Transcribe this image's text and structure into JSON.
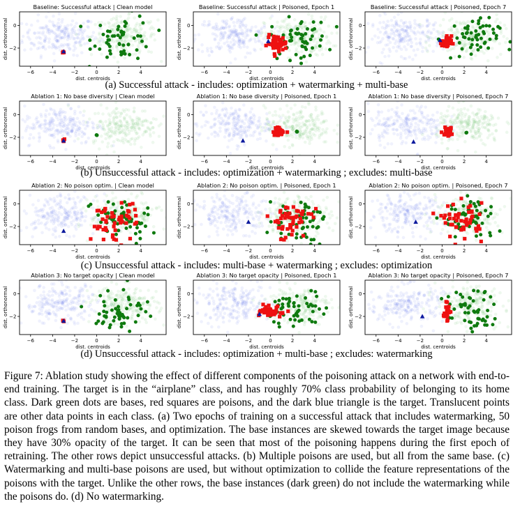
{
  "figure": {
    "rows": [
      {
        "caption": "(a) Successful attack - includes: optimization + watermarking + multi-base",
        "panels": [
          {
            "title": "Baseline: Successful attack | Clean model"
          },
          {
            "title": "Baseline: Successful attack | Poisoned, Epoch 1"
          },
          {
            "title": "Baseline: Successful attack | Poisoned, Epoch 7"
          }
        ]
      },
      {
        "caption": "(b) Unsuccessful attack - includes: optimization + watermarking ; excludes: multi-base",
        "panels": [
          {
            "title": "Ablation 1: No base diversity | Clean model"
          },
          {
            "title": "Ablation 1: No base diversity | Poisoned, Epoch 1"
          },
          {
            "title": "Ablation 1: No base diversity | Poisoned, Epoch 7"
          }
        ]
      },
      {
        "caption": "(c) Unsuccessful attack - includes: multi-base + watermarking ; excludes: optimization",
        "panels": [
          {
            "title": "Ablation 2: No poison optim. | Clean model"
          },
          {
            "title": "Ablation 2: No poison optim. | Poisoned, Epoch 1"
          },
          {
            "title": "Ablation 2: No poison optim. | Poisoned, Epoch 7"
          }
        ]
      },
      {
        "caption": "(d) Unsuccessful attack - includes: optimization + multi-base ; excludes: watermarking",
        "panels": [
          {
            "title": "Ablation 3: No target opacity | Clean model"
          },
          {
            "title": "Ablation 3: No target opacity | Poisoned, Epoch 1"
          },
          {
            "title": "Ablation 3: No target opacity | Poisoned, Epoch 7"
          }
        ]
      }
    ],
    "axes": {
      "xlabel": "dist. centroids",
      "ylabel": "dist. orthonormal",
      "xticks": [
        -6,
        -4,
        -2,
        0,
        2,
        4
      ],
      "yticks": [
        0,
        -2
      ]
    }
  },
  "chart_data": {
    "type": "scatter",
    "xlabel": "dist. centroids",
    "ylabel": "dist. orthonormal",
    "xlim": [
      -7,
      6.3
    ],
    "ylim": [
      -3.6,
      1.2
    ],
    "panel_configs": [
      [
        {
          "target": [
            -3.0,
            -2.3
          ],
          "poison": {
            "cx": -3.0,
            "cy": -2.3,
            "sx": 0.05,
            "sy": 0.05,
            "n": 4
          },
          "base": {
            "cx": 2.4,
            "cy": -1.1,
            "sx": 1.35,
            "sy": 1.0,
            "n": 55
          }
        },
        {
          "target": [
            -0.2,
            -1.4
          ],
          "poison": {
            "cx": 0.6,
            "cy": -1.6,
            "sx": 0.45,
            "sy": 0.35,
            "n": 50
          },
          "base": {
            "cx": 2.6,
            "cy": -1.2,
            "sx": 1.3,
            "sy": 0.9,
            "n": 55
          }
        },
        {
          "target": [
            -0.2,
            -1.3
          ],
          "poison": {
            "cx": 0.4,
            "cy": -1.5,
            "sx": 0.22,
            "sy": 0.28,
            "n": 30
          },
          "base": {
            "cx": 2.6,
            "cy": -1.2,
            "sx": 1.25,
            "sy": 0.9,
            "n": 55
          }
        }
      ],
      [
        {
          "target": [
            -3.0,
            -2.3
          ],
          "poison": {
            "cx": -3.0,
            "cy": -2.3,
            "sx": 0.05,
            "sy": 0.05,
            "n": 4
          },
          "base": {
            "cx": 0.0,
            "cy": -1.8,
            "sx": 0.02,
            "sy": 0.02,
            "n": 5
          }
        },
        {
          "target": [
            -2.5,
            -2.3
          ],
          "poison": {
            "cx": 0.8,
            "cy": -1.5,
            "sx": 0.28,
            "sy": 0.18,
            "n": 40
          },
          "base": {
            "cx": 2.4,
            "cy": -1.5,
            "sx": 0.02,
            "sy": 0.02,
            "n": 5
          }
        },
        {
          "target": [
            -2.6,
            -2.4
          ],
          "poison": {
            "cx": 0.5,
            "cy": -1.5,
            "sx": 0.22,
            "sy": 0.18,
            "n": 35
          },
          "base": {
            "cx": 2.2,
            "cy": -1.6,
            "sx": 0.02,
            "sy": 0.02,
            "n": 5
          }
        }
      ],
      [
        {
          "target": [
            -3.0,
            -2.4
          ],
          "poison": {
            "cx": 1.6,
            "cy": -1.6,
            "sx": 1.1,
            "sy": 0.85,
            "n": 50
          },
          "base": {
            "cx": 2.2,
            "cy": -1.4,
            "sx": 1.3,
            "sy": 1.0,
            "n": 55
          }
        },
        {
          "target": [
            -2.0,
            -1.6
          ],
          "poison": {
            "cx": 1.7,
            "cy": -1.5,
            "sx": 1.0,
            "sy": 0.8,
            "n": 50
          },
          "base": {
            "cx": 2.4,
            "cy": -1.4,
            "sx": 1.3,
            "sy": 1.0,
            "n": 55
          }
        },
        {
          "target": [
            -2.4,
            -1.6
          ],
          "poison": {
            "cx": 1.9,
            "cy": -1.5,
            "sx": 0.9,
            "sy": 0.75,
            "n": 50
          },
          "base": {
            "cx": 2.5,
            "cy": -1.4,
            "sx": 1.25,
            "sy": 1.0,
            "n": 55
          }
        }
      ],
      [
        {
          "target": [
            -3.0,
            -2.4
          ],
          "poison": {
            "cx": -3.0,
            "cy": -2.4,
            "sx": 0.05,
            "sy": 0.05,
            "n": 4
          },
          "base": {
            "cx": 2.3,
            "cy": -1.4,
            "sx": 1.2,
            "sy": 1.0,
            "n": 55
          }
        },
        {
          "target": [
            -1.0,
            -1.8
          ],
          "poison": {
            "cx": 0.2,
            "cy": -1.6,
            "sx": 0.55,
            "sy": 0.22,
            "n": 45
          },
          "base": {
            "cx": 2.5,
            "cy": -1.5,
            "sx": 1.2,
            "sy": 0.95,
            "n": 55
          }
        },
        {
          "target": [
            -1.8,
            -2.0
          ],
          "poison": {
            "cx": 0.4,
            "cy": -1.6,
            "sx": 0.15,
            "sy": 0.35,
            "n": 30
          },
          "base": {
            "cx": 2.6,
            "cy": -1.5,
            "sx": 1.1,
            "sy": 0.95,
            "n": 55
          }
        }
      ]
    ],
    "clouds": {
      "blue": {
        "cx": -3.3,
        "cy": -0.9,
        "sx": 1.7,
        "sy": 0.85,
        "n": 220
      },
      "green": {
        "cx": 2.5,
        "cy": -1.0,
        "sx": 1.5,
        "sy": 0.85,
        "n": 220
      }
    },
    "colors": {
      "cloud_blue": "#4d63ea",
      "cloud_green": "#3fae3f",
      "base": "#0f7a0f",
      "poison": "#ee1111",
      "target": "#0d1a9e"
    }
  },
  "caption": {
    "text": "Figure 7: Ablation study showing the effect of different components of the poisoning attack on a network with end-to-end training. The target is in the “airplane” class, and has roughly 70% class probability of belonging to its home class. Dark green dots are bases, red squares are poisons, and the dark blue triangle is the target. Translucent points are other data points in each class. (a) Two epochs of training on a successful attack that includes watermarking, 50 poison frogs from random bases, and optimization. The base instances are skewed towards the target image because they have 30% opacity of the target. It can be seen that most of the poisoning happens during the first epoch of retraining. The other rows depict unsuccessful attacks. (b) Multiple poisons are used, but all from the same base. (c) Watermarking and multi-base poisons are used, but without optimization to collide the feature representations of the poisons with the target. Unlike the other rows, the base instances (dark green) do not include the watermarking while the poisons do. (d) No watermarking."
  }
}
